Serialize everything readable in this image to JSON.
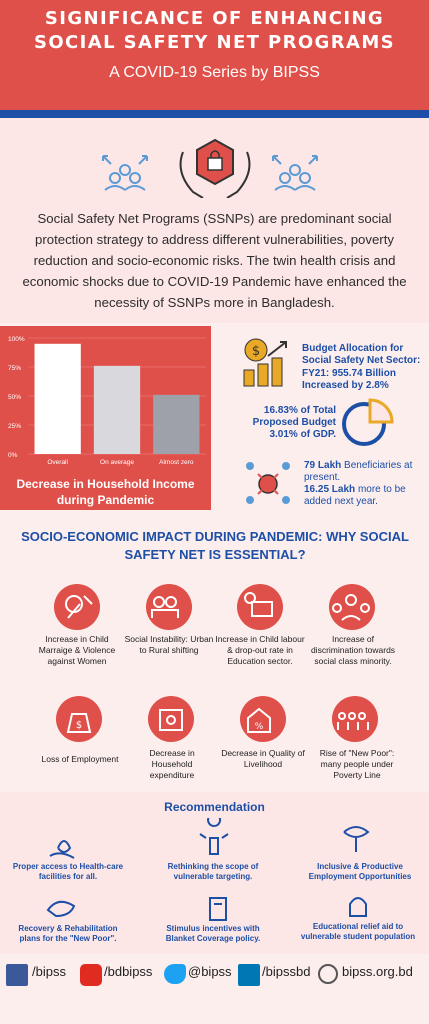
{
  "header": {
    "title_line1": "SIGNIFICANCE OF ENHANCING",
    "title_line2": "SOCIAL SAFETY NET PROGRAMS",
    "subtitle": "A COVID-19 Series by BIPSS"
  },
  "intro": {
    "text": "Social Safety Net Programs (SSNPs) are predominant social protection strategy to address different vulnerabilities, poverty reduction and socio-economic risks. The twin health crisis and economic shocks due to COVID-19 Pandemic have enhanced the necessity of SSNPs more in Bangladesh."
  },
  "chart_data": {
    "type": "bar",
    "title": "Decrease in Household Income during Pandemic",
    "categories": [
      "Overall",
      "On average",
      "Almost zero"
    ],
    "values": [
      95,
      76,
      51
    ],
    "ylim": [
      0,
      100
    ],
    "yticks": [
      "0%",
      "25%",
      "50%",
      "75%",
      "100%"
    ],
    "bar_colors": [
      "#ffffff",
      "#d9d9dd",
      "#9fa1aa"
    ]
  },
  "budget": {
    "allocation_label": "Budget Allocation for Social Safety Net Sector:",
    "allocation_value": "FY21: 955.74 Billion",
    "allocation_increase": "Increased by 2.8%",
    "share_pct": "16.83%",
    "share_text": "of Total Proposed Budget",
    "gdp_pct": "3.01%",
    "gdp_text": "of GDP.",
    "beneficiaries_value": "79 Lakh",
    "beneficiaries_text": "Beneficiaries at present.",
    "added_value": "16.25 Lakh",
    "added_text": "more to be added next year."
  },
  "impact": {
    "title": "SOCIO-ECONOMIC IMPACT DURING PANDEMIC: WHY SOCIAL SAFETY NET IS ESSENTIAL?",
    "items": [
      {
        "label": "Increase in Child Marraige & Violence against Women",
        "icon": "child-marriage-icon"
      },
      {
        "label": "Social Instability: Urban to Rural shifting",
        "icon": "social-instability-icon"
      },
      {
        "label": "Increase in Child labour & drop-out rate in Education sector.",
        "icon": "child-labour-icon"
      },
      {
        "label": "Increase of discrimination towards social class minority.",
        "icon": "discrimination-icon"
      },
      {
        "label": "Loss of Employment",
        "icon": "employment-loss-icon"
      },
      {
        "label": "Decrease in Household expenditure",
        "icon": "household-expenditure-icon"
      },
      {
        "label": "Decrease in Quality of Livelihood",
        "icon": "livelihood-icon"
      },
      {
        "label": "Rise of \"New Poor\": many people under Poverty Line",
        "icon": "new-poor-icon"
      }
    ]
  },
  "recommendation": {
    "title": "Recommendation",
    "items": [
      {
        "label": "Proper access to Health-care facilities for all.",
        "icon": "healthcare-icon"
      },
      {
        "label": "Rethinking the scope of vulnerable targeting.",
        "icon": "targeting-icon"
      },
      {
        "label": "Inclusive & Productive Employment Opportunities",
        "icon": "employment-icon"
      },
      {
        "label": "Recovery & Rehabilitation plans for the \"New Poor\".",
        "icon": "rehabilitation-icon"
      },
      {
        "label": "Stimulus incentives with Blanket Coverage policy.",
        "icon": "stimulus-icon"
      },
      {
        "label": "Educational relief aid to vulnerable student population",
        "icon": "education-aid-icon"
      }
    ]
  },
  "footer": {
    "facebook": "/bipss",
    "youtube": "/bdbipss",
    "twitter": "@bipss",
    "linkedin": "/bipssbd",
    "website": "bipss.org.bd"
  },
  "colors": {
    "red": "#e0504a",
    "blue": "#1d4fa6",
    "gold": "#e9a825",
    "pink": "#fde6e6"
  }
}
